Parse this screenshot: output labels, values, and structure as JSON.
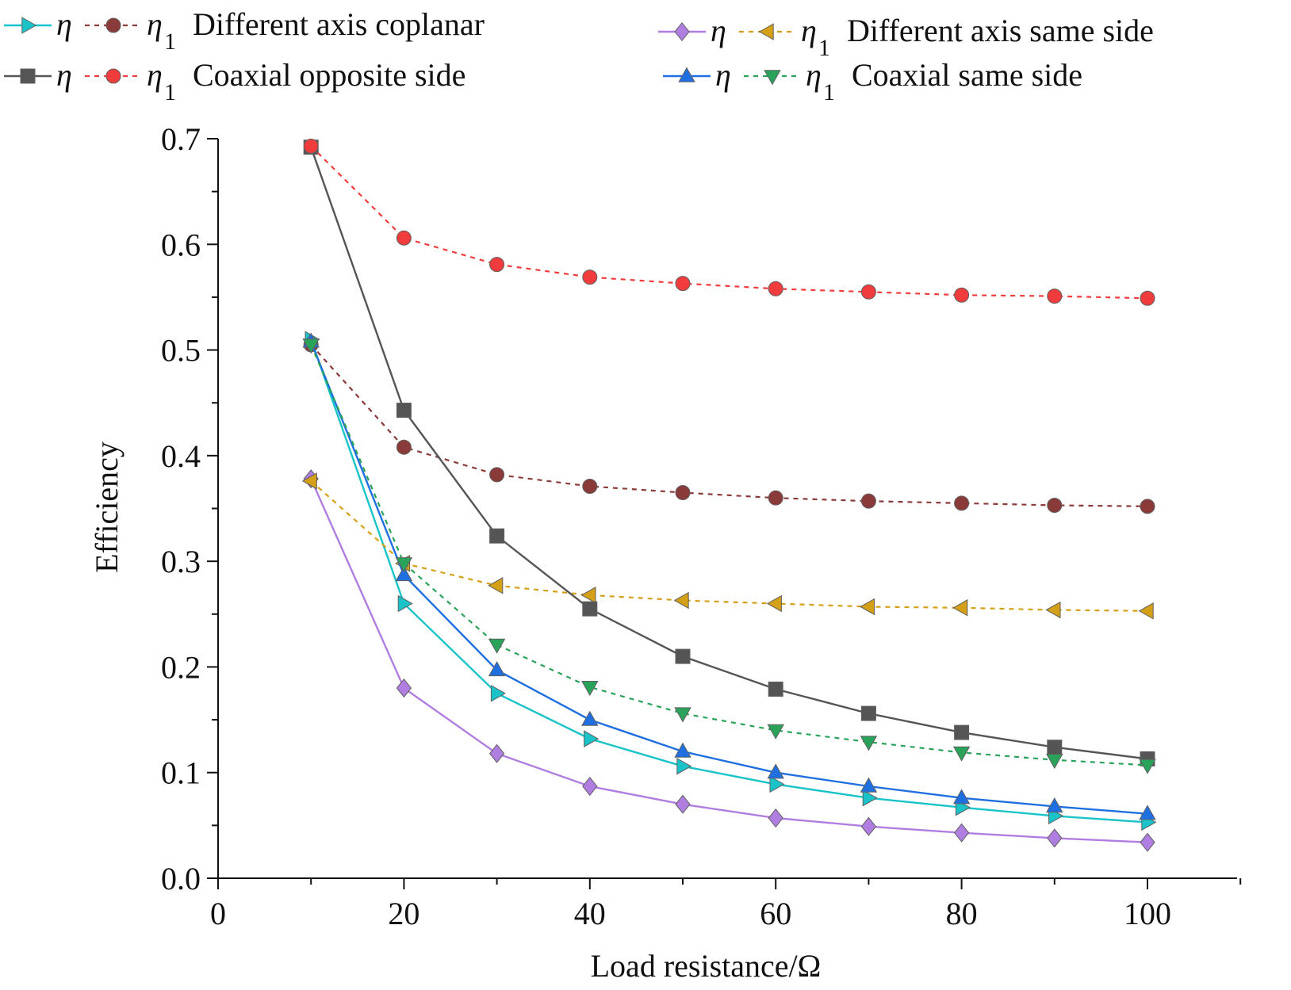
{
  "chart_data": {
    "type": "line",
    "title": "",
    "xlabel": "Load resistance/Ω",
    "ylabel": "Efficiency",
    "xlim": [
      0,
      110
    ],
    "ylim": [
      0,
      0.7
    ],
    "x_ticks": [
      0,
      20,
      40,
      60,
      80,
      100
    ],
    "x_tick_labels": [
      "0",
      "20",
      "40",
      "60",
      "80",
      "100"
    ],
    "y_ticks": [
      0,
      0.1,
      0.2,
      0.3,
      0.4,
      0.5,
      0.6,
      0.7
    ],
    "y_tick_labels": [
      "0.0",
      "0.1",
      "0.2",
      "0.3",
      "0.4",
      "0.5",
      "0.6",
      "0.7"
    ],
    "grid": false,
    "legend_position": "top",
    "x": [
      10,
      20,
      30,
      40,
      50,
      60,
      70,
      80,
      90,
      100
    ],
    "series": [
      {
        "name": "η Different axis coplanar",
        "symbol": "η",
        "subscript": "",
        "group_label": "Different axis coplanar",
        "color": "#19c3c8",
        "marker": "triangle-right",
        "dash": "solid",
        "values": [
          0.51,
          0.26,
          0.175,
          0.132,
          0.106,
          0.089,
          0.076,
          0.067,
          0.059,
          0.053
        ]
      },
      {
        "name": "η1 Different axis coplanar",
        "symbol": "η",
        "subscript": "1",
        "group_label": "Different axis coplanar",
        "color": "#8b3a3a",
        "marker": "circle",
        "dash": "dashed",
        "values": [
          0.505,
          0.408,
          0.382,
          0.371,
          0.365,
          0.36,
          0.357,
          0.355,
          0.353,
          0.352
        ]
      },
      {
        "name": "η Different axis same side",
        "symbol": "η",
        "subscript": "",
        "group_label": "Different axis same side",
        "color": "#b07ee0",
        "marker": "diamond",
        "dash": "solid",
        "values": [
          0.378,
          0.18,
          0.118,
          0.087,
          0.07,
          0.057,
          0.049,
          0.043,
          0.038,
          0.034
        ]
      },
      {
        "name": "η1 Different axis same side",
        "symbol": "η",
        "subscript": "1",
        "group_label": "Different axis same side",
        "color": "#d4a017",
        "marker": "triangle-left",
        "dash": "dashed",
        "values": [
          0.376,
          0.298,
          0.277,
          0.268,
          0.263,
          0.26,
          0.257,
          0.256,
          0.254,
          0.253
        ]
      },
      {
        "name": "η Coaxial opposite side",
        "symbol": "η",
        "subscript": "",
        "group_label": "Coaxial opposite side",
        "color": "#555555",
        "marker": "square",
        "dash": "solid",
        "values": [
          0.692,
          0.443,
          0.324,
          0.255,
          0.21,
          0.179,
          0.156,
          0.138,
          0.124,
          0.113
        ]
      },
      {
        "name": "η1 Coaxial opposite side",
        "symbol": "η",
        "subscript": "1",
        "group_label": "Coaxial opposite side",
        "color": "#f03c3c",
        "marker": "circle",
        "dash": "dashed",
        "values": [
          0.693,
          0.606,
          0.581,
          0.569,
          0.563,
          0.558,
          0.555,
          0.552,
          0.551,
          0.549
        ]
      },
      {
        "name": "η Coaxial same side",
        "symbol": "η",
        "subscript": "",
        "group_label": "Coaxial same side",
        "color": "#1f6fe0",
        "marker": "triangle-up",
        "dash": "solid",
        "values": [
          0.508,
          0.287,
          0.197,
          0.15,
          0.12,
          0.1,
          0.087,
          0.076,
          0.068,
          0.061
        ]
      },
      {
        "name": "η1 Coaxial same side",
        "symbol": "η",
        "subscript": "1",
        "group_label": "Coaxial same side",
        "color": "#2aa35a",
        "marker": "triangle-down",
        "dash": "dashed",
        "values": [
          0.505,
          0.298,
          0.221,
          0.181,
          0.156,
          0.14,
          0.129,
          0.119,
          0.112,
          0.107
        ]
      }
    ],
    "legend": [
      {
        "line_series": 0,
        "dot_series": 1,
        "label": "Different axis coplanar"
      },
      {
        "line_series": 2,
        "dot_series": 3,
        "label": "Different axis same side"
      },
      {
        "line_series": 4,
        "dot_series": 5,
        "label": "Coaxial opposite side"
      },
      {
        "line_series": 6,
        "dot_series": 7,
        "label": "Coaxial same side"
      }
    ]
  }
}
